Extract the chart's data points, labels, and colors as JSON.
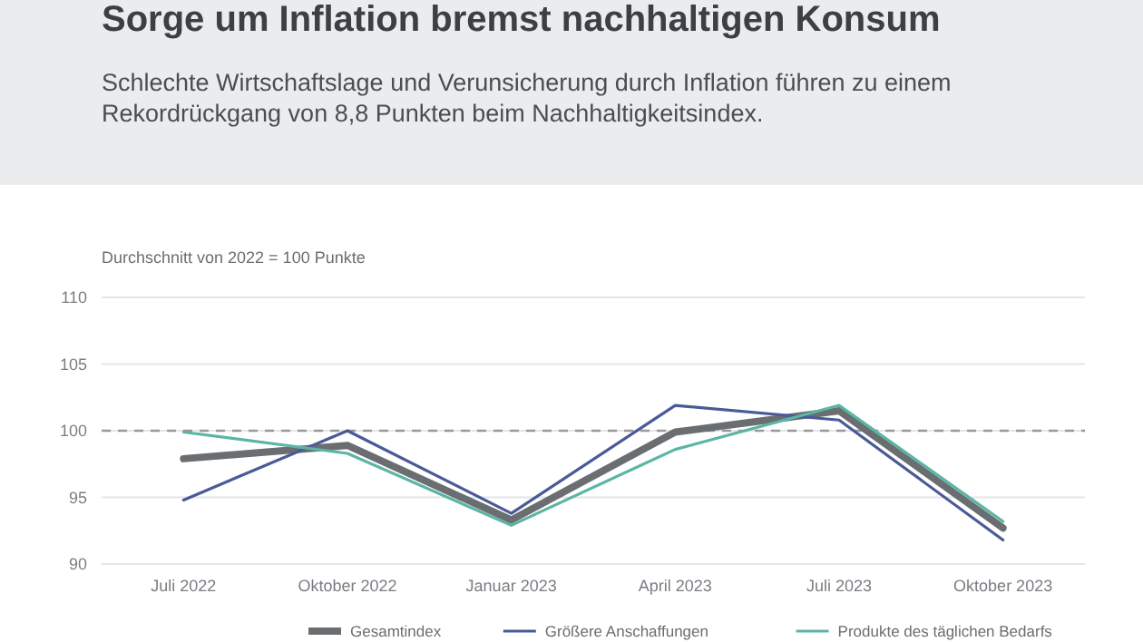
{
  "chart_data": {
    "type": "line",
    "title": "Sorge um Inflation bremst nachhaltigen Konsum",
    "subtitle": "Schlechte Wirtschaftslage und Verunsicherung durch Inflation führen zu einem\nRekordrückgang von 8,8 Punkten beim Nachhaltigkeitsindex.",
    "ylabel": "Durchschnitt von 2022 = 100 Punkte",
    "categories": [
      "Juli 2022",
      "Oktober 2022",
      "Januar 2023",
      "April 2023",
      "Juli 2023",
      "Oktober 2023"
    ],
    "series": [
      {
        "name": "Gesamtindex",
        "color": "#6b6e70",
        "values": [
          97.9,
          98.9,
          93.3,
          99.9,
          101.5,
          92.7
        ]
      },
      {
        "name": "Größere Anschaffungen",
        "color": "#4a5a96",
        "values": [
          94.8,
          100.0,
          93.8,
          101.9,
          100.8,
          91.8
        ]
      },
      {
        "name": "Produkte des täglichen Bedarfs",
        "color": "#5bb5a5",
        "values": [
          99.9,
          98.3,
          92.9,
          98.6,
          101.9,
          93.2
        ]
      }
    ],
    "ylim": [
      90,
      110
    ],
    "yticks": [
      90,
      95,
      100,
      105,
      110
    ],
    "ref_lines": [
      {
        "axis": "y",
        "value": 100,
        "color": "#999999",
        "line_style": "dashed"
      }
    ],
    "grid": "y",
    "legend": "bottom",
    "marker": "none",
    "line_style": "solid"
  }
}
